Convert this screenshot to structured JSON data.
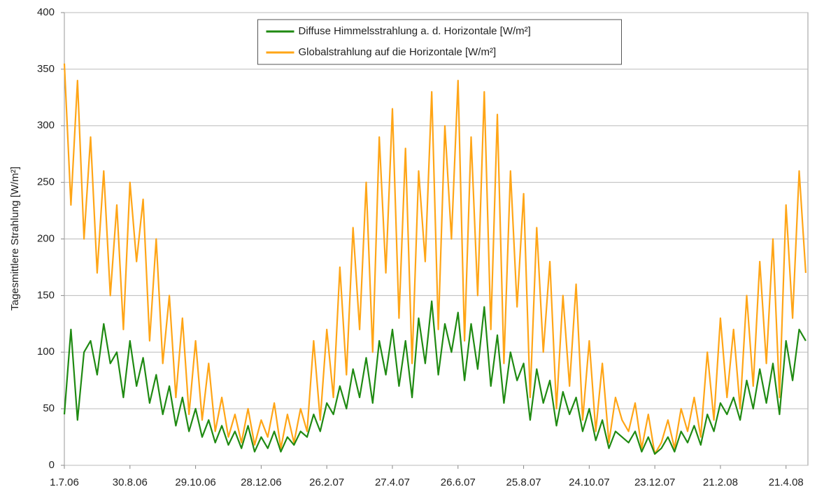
{
  "chart_data": {
    "type": "line",
    "y_label": "Tagesmittlere Strahlung [W/m²]",
    "x": [
      0,
      6,
      12,
      18,
      24,
      30,
      36,
      42,
      48,
      54,
      60,
      66,
      72,
      78,
      84,
      90,
      96,
      102,
      108,
      114,
      120,
      126,
      132,
      138,
      144,
      150,
      156,
      162,
      168,
      174,
      180,
      186,
      192,
      198,
      204,
      210,
      216,
      222,
      228,
      234,
      240,
      246,
      252,
      258,
      264,
      270,
      276,
      282,
      288,
      294,
      300,
      306,
      312,
      318,
      324,
      330,
      336,
      342,
      348,
      354,
      360,
      366,
      372,
      378,
      384,
      390,
      396,
      402,
      408,
      414,
      420,
      426,
      432,
      438,
      444,
      450,
      456,
      462,
      468,
      474,
      480,
      486,
      492,
      498,
      504,
      510,
      516,
      522,
      528,
      534,
      540,
      546,
      552,
      558,
      564,
      570,
      576,
      582,
      588,
      594,
      600,
      606,
      612,
      618,
      624,
      630,
      636,
      642,
      648,
      654,
      660,
      666,
      672,
      678
    ],
    "series": [
      {
        "name": "Diffuse Himmelsstrahlung a. d. Horizontale [W/m²]",
        "color": "#1f8a12",
        "values": [
          45,
          120,
          40,
          100,
          110,
          80,
          125,
          90,
          100,
          60,
          110,
          70,
          95,
          55,
          80,
          45,
          70,
          35,
          60,
          30,
          50,
          25,
          40,
          20,
          35,
          18,
          30,
          15,
          35,
          12,
          25,
          15,
          30,
          12,
          25,
          18,
          30,
          25,
          45,
          30,
          55,
          45,
          70,
          50,
          85,
          60,
          95,
          55,
          110,
          80,
          120,
          70,
          110,
          60,
          130,
          90,
          145,
          80,
          125,
          100,
          135,
          75,
          125,
          85,
          140,
          70,
          115,
          55,
          100,
          75,
          90,
          40,
          85,
          55,
          75,
          35,
          65,
          45,
          60,
          30,
          50,
          22,
          40,
          15,
          30,
          25,
          20,
          30,
          12,
          25,
          10,
          15,
          25,
          12,
          30,
          20,
          35,
          18,
          45,
          30,
          55,
          45,
          60,
          40,
          75,
          50,
          85,
          55,
          90,
          45,
          110,
          75,
          120,
          110
        ]
      },
      {
        "name": "Globalstrahlung auf die Horizontale [W/m²]",
        "color": "#ffa516",
        "values": [
          355,
          230,
          340,
          200,
          290,
          170,
          260,
          150,
          230,
          120,
          250,
          180,
          235,
          110,
          200,
          90,
          150,
          60,
          130,
          45,
          110,
          40,
          90,
          30,
          60,
          25,
          45,
          20,
          50,
          18,
          40,
          25,
          55,
          15,
          45,
          20,
          50,
          30,
          110,
          40,
          120,
          60,
          175,
          80,
          210,
          120,
          250,
          100,
          290,
          170,
          315,
          130,
          280,
          90,
          260,
          180,
          330,
          120,
          300,
          200,
          340,
          110,
          290,
          150,
          330,
          120,
          310,
          90,
          260,
          140,
          240,
          60,
          210,
          100,
          180,
          50,
          150,
          70,
          160,
          40,
          110,
          30,
          90,
          20,
          60,
          40,
          30,
          55,
          15,
          45,
          10,
          20,
          40,
          15,
          50,
          30,
          60,
          25,
          100,
          40,
          130,
          60,
          120,
          50,
          150,
          70,
          180,
          90,
          200,
          60,
          230,
          130,
          260,
          170
        ]
      }
    ],
    "xlim": [
      0,
      680
    ],
    "xticks": [
      {
        "value": 0,
        "label": "1.7.06"
      },
      {
        "value": 60,
        "label": "30.8.06"
      },
      {
        "value": 120,
        "label": "29.10.06"
      },
      {
        "value": 180,
        "label": "28.12.06"
      },
      {
        "value": 240,
        "label": "26.2.07"
      },
      {
        "value": 300,
        "label": "27.4.07"
      },
      {
        "value": 360,
        "label": "26.6.07"
      },
      {
        "value": 420,
        "label": "25.8.07"
      },
      {
        "value": 480,
        "label": "24.10.07"
      },
      {
        "value": 540,
        "label": "23.12.07"
      },
      {
        "value": 600,
        "label": "21.2.08"
      },
      {
        "value": 660,
        "label": "21.4.08"
      }
    ],
    "ylim": [
      0,
      400
    ],
    "yticks": [
      0,
      50,
      100,
      150,
      200,
      250,
      300,
      350,
      400
    ],
    "grid": true,
    "legend": "top"
  }
}
